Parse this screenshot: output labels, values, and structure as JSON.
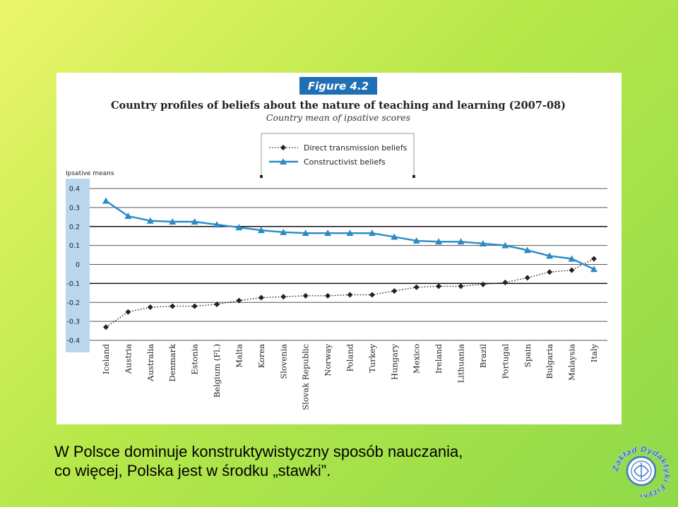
{
  "colors": {
    "background_start": "#ecf56a",
    "background_end": "#8fd94a",
    "direct_series": "#222222",
    "constructivist_series": "#2a8bc7",
    "y_axis_band": "#b9d7ee",
    "badge": "#1e6fb3",
    "logo": "#3f78c9"
  },
  "figure": {
    "badge": "Figure 4.2",
    "title": "Country profiles of beliefs about the nature of teaching and learning (2007-08)",
    "subtitle": "Country mean of ipsative scores"
  },
  "chart_data": {
    "type": "line",
    "ylabel": "Ipsative means",
    "xlabel": "",
    "ylim": [
      -0.4,
      0.4
    ],
    "yticks": [
      0.4,
      0.3,
      0.2,
      0.1,
      0,
      -0.1,
      -0.2,
      -0.3,
      -0.4
    ],
    "ytick_labels": [
      "0.4",
      "0.3",
      "0.2",
      "0.1",
      "0",
      "-0.1",
      "-0.2",
      "-0.3",
      "-0.4"
    ],
    "legend_position": "top-center",
    "categories": [
      "Iceland",
      "Austria",
      "Australia",
      "Denmark",
      "Estonia",
      "Belgium (Fl.)",
      "Malta",
      "Korea",
      "Slovenia",
      "Slovak Republic",
      "Norway",
      "Poland",
      "Turkey",
      "Hungary",
      "Mexico",
      "Ireland",
      "Lithuania",
      "Brazil",
      "Portugal",
      "Spain",
      "Bulgaria",
      "Malaysia",
      "Italy"
    ],
    "series": [
      {
        "name": "Direct transmission beliefs",
        "style": "dotted",
        "marker": "diamond",
        "values": [
          -0.33,
          -0.25,
          -0.225,
          -0.22,
          -0.22,
          -0.21,
          -0.19,
          -0.175,
          -0.17,
          -0.165,
          -0.165,
          -0.16,
          -0.16,
          -0.14,
          -0.12,
          -0.115,
          -0.115,
          -0.105,
          -0.095,
          -0.07,
          -0.04,
          -0.03,
          0.03
        ]
      },
      {
        "name": "Constructivist beliefs",
        "style": "solid",
        "marker": "triangle",
        "values": [
          0.335,
          0.255,
          0.23,
          0.225,
          0.225,
          0.21,
          0.195,
          0.18,
          0.17,
          0.165,
          0.165,
          0.165,
          0.165,
          0.145,
          0.125,
          0.12,
          0.12,
          0.11,
          0.1,
          0.075,
          0.045,
          0.03,
          -0.025
        ]
      }
    ]
  },
  "caption": {
    "line1": "W Polsce dominuje konstruktywistyczny sposób nauczania,",
    "line2": "co więcej, Polska jest w środku „stawki”."
  },
  "logo": {
    "text": "Zakład Dydaktyki Fizyki",
    "icon": "physics-logo-icon"
  }
}
